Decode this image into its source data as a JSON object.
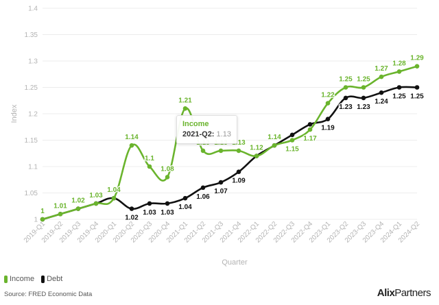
{
  "chart_data": {
    "type": "line",
    "categories": [
      "2019-Q1",
      "2019-Q2",
      "2019-Q3",
      "2019-Q4",
      "2020-Q1",
      "2020-Q2",
      "2020-Q3",
      "2020-Q4",
      "2021-Q1",
      "2021-Q2",
      "2021-Q3",
      "2021-Q4",
      "2022-Q1",
      "2022-Q2",
      "2022-Q3",
      "2022-Q4",
      "2023-Q1",
      "2023-Q2",
      "2023-Q3",
      "2023-Q4",
      "2024-Q1",
      "2024-Q2"
    ],
    "series": [
      {
        "name": "Income",
        "color": "#6ab42d",
        "values": [
          1,
          1.01,
          1.02,
          1.03,
          1.04,
          1.14,
          1.1,
          1.08,
          1.21,
          1.13,
          1.13,
          1.13,
          1.12,
          1.14,
          1.15,
          1.17,
          1.22,
          1.25,
          1.25,
          1.27,
          1.28,
          1.29
        ],
        "labels": [
          "1",
          "1.01",
          "1.02",
          "1.03",
          "1.04",
          "1.14",
          "1.1",
          "1.08",
          "1.21",
          "1.13",
          "1.13",
          "1.13",
          "1.12",
          "1.14",
          "1.15",
          "1.17",
          "1.22",
          "1.25",
          "1.25",
          "1.27",
          "1.28",
          "1.29"
        ]
      },
      {
        "name": "Debt",
        "color": "#111111",
        "values": [
          1,
          1.01,
          1.02,
          1.03,
          1.04,
          1.02,
          1.03,
          1.03,
          1.04,
          1.06,
          1.07,
          1.09,
          1.12,
          1.14,
          1.16,
          1.18,
          1.19,
          1.23,
          1.23,
          1.24,
          1.25,
          1.25
        ],
        "labels": [
          null,
          null,
          null,
          null,
          null,
          "1.02",
          "1.03",
          "1.03",
          "1.04",
          "1.06",
          "1.07",
          "1.09",
          null,
          null,
          null,
          null,
          "1.19",
          "1.23",
          "1.23",
          "1.24",
          "1.25",
          "1.25"
        ]
      }
    ],
    "xlabel": "Quarter",
    "ylabel": "Index",
    "ylim": [
      1,
      1.4
    ],
    "yticks": [
      1,
      1.05,
      1.1,
      1.15,
      1.2,
      1.25,
      1.3,
      1.35,
      1.4
    ],
    "ytick_labels": [
      "1",
      "1.05",
      "1.1",
      "1.15",
      "1.2",
      "1.25",
      "1.3",
      "1.35",
      "1.4"
    ],
    "grid": true,
    "legend_position": "bottom-left"
  },
  "tooltip": {
    "series": "Income",
    "quarter": "2021-Q2:",
    "value": "1.13"
  },
  "legend": {
    "income": "Income",
    "debt": "Debt"
  },
  "footer": {
    "source": "Source: FRED Economic Data",
    "brand_bold": "Alix",
    "brand_rest": "Partners"
  }
}
